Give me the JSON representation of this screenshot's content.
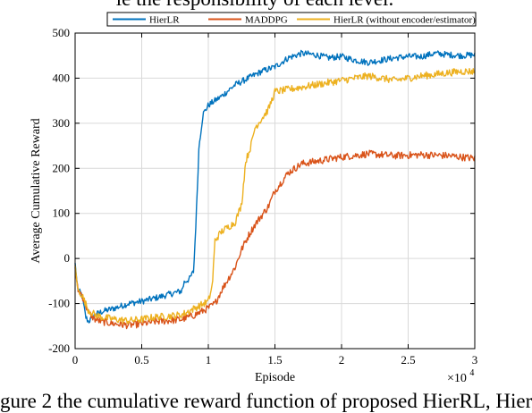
{
  "page": {
    "top_caption": "le the responsibility of each level.",
    "bottom_caption": "gure 2 the cumulative reward function of proposed HierRL, Hier"
  },
  "chart_data": {
    "type": "line",
    "title": "",
    "xlabel": "Episode",
    "ylabel": "Average Cumulative Reward",
    "x_multiplier_label": "×10",
    "x_multiplier_exponent": "4",
    "xlim": [
      0,
      3
    ],
    "ylim": [
      -200,
      500
    ],
    "x_ticks": [
      0,
      0.5,
      1,
      1.5,
      2,
      2.5,
      3
    ],
    "x_tick_labels": [
      "0",
      "0.5",
      "1",
      "1.5",
      "2",
      "2.5",
      "3"
    ],
    "y_ticks": [
      -200,
      -100,
      0,
      100,
      200,
      300,
      400,
      500
    ],
    "y_tick_labels": [
      "-200",
      "-100",
      "0",
      "100",
      "200",
      "300",
      "400",
      "500"
    ],
    "grid": true,
    "legend_position": "top",
    "series": [
      {
        "name": "HierLR",
        "color": "#0072bd",
        "noise": 7,
        "points": [
          [
            0,
            -10
          ],
          [
            0.02,
            -70
          ],
          [
            0.05,
            -80
          ],
          [
            0.08,
            -130
          ],
          [
            0.1,
            -140
          ],
          [
            0.15,
            -125
          ],
          [
            0.2,
            -118
          ],
          [
            0.3,
            -110
          ],
          [
            0.4,
            -100
          ],
          [
            0.5,
            -95
          ],
          [
            0.6,
            -88
          ],
          [
            0.7,
            -80
          ],
          [
            0.8,
            -72
          ],
          [
            0.82,
            -52
          ],
          [
            0.86,
            -45
          ],
          [
            0.89,
            -28
          ],
          [
            0.91,
            100
          ],
          [
            0.93,
            250
          ],
          [
            0.96,
            320
          ],
          [
            1.0,
            340
          ],
          [
            1.1,
            360
          ],
          [
            1.2,
            385
          ],
          [
            1.3,
            400
          ],
          [
            1.4,
            415
          ],
          [
            1.5,
            425
          ],
          [
            1.6,
            445
          ],
          [
            1.7,
            455
          ],
          [
            1.8,
            452
          ],
          [
            1.9,
            445
          ],
          [
            2.0,
            448
          ],
          [
            2.1,
            440
          ],
          [
            2.2,
            435
          ],
          [
            2.3,
            440
          ],
          [
            2.4,
            445
          ],
          [
            2.5,
            448
          ],
          [
            2.6,
            448
          ],
          [
            2.7,
            455
          ],
          [
            2.8,
            452
          ],
          [
            2.9,
            450
          ],
          [
            3.0,
            452
          ]
        ]
      },
      {
        "name": "MADDPG",
        "color": "#d95319",
        "noise": 8,
        "points": [
          [
            0,
            -20
          ],
          [
            0.02,
            -70
          ],
          [
            0.05,
            -80
          ],
          [
            0.1,
            -120
          ],
          [
            0.15,
            -135
          ],
          [
            0.2,
            -140
          ],
          [
            0.3,
            -145
          ],
          [
            0.4,
            -148
          ],
          [
            0.5,
            -145
          ],
          [
            0.6,
            -140
          ],
          [
            0.7,
            -138
          ],
          [
            0.8,
            -135
          ],
          [
            0.9,
            -125
          ],
          [
            1.0,
            -110
          ],
          [
            1.05,
            -100
          ],
          [
            1.1,
            -70
          ],
          [
            1.15,
            -45
          ],
          [
            1.2,
            -20
          ],
          [
            1.25,
            20
          ],
          [
            1.3,
            50
          ],
          [
            1.35,
            75
          ],
          [
            1.4,
            95
          ],
          [
            1.45,
            115
          ],
          [
            1.5,
            150
          ],
          [
            1.6,
            190
          ],
          [
            1.7,
            210
          ],
          [
            1.8,
            215
          ],
          [
            1.9,
            220
          ],
          [
            2.0,
            225
          ],
          [
            2.2,
            232
          ],
          [
            2.4,
            228
          ],
          [
            2.6,
            230
          ],
          [
            2.8,
            228
          ],
          [
            3.0,
            222
          ]
        ]
      },
      {
        "name": "HierLR (without encoder/estimator)",
        "color": "#edb120",
        "noise": 8,
        "points": [
          [
            0,
            -15
          ],
          [
            0.02,
            -70
          ],
          [
            0.05,
            -80
          ],
          [
            0.1,
            -115
          ],
          [
            0.15,
            -125
          ],
          [
            0.2,
            -130
          ],
          [
            0.3,
            -135
          ],
          [
            0.4,
            -138
          ],
          [
            0.5,
            -135
          ],
          [
            0.6,
            -130
          ],
          [
            0.7,
            -128
          ],
          [
            0.8,
            -125
          ],
          [
            0.9,
            -110
          ],
          [
            1.0,
            -95
          ],
          [
            1.03,
            -60
          ],
          [
            1.05,
            40
          ],
          [
            1.1,
            60
          ],
          [
            1.2,
            80
          ],
          [
            1.25,
            120
          ],
          [
            1.28,
            215
          ],
          [
            1.32,
            250
          ],
          [
            1.35,
            290
          ],
          [
            1.4,
            310
          ],
          [
            1.45,
            330
          ],
          [
            1.5,
            370
          ],
          [
            1.6,
            375
          ],
          [
            1.7,
            380
          ],
          [
            1.8,
            385
          ],
          [
            1.9,
            390
          ],
          [
            2.0,
            395
          ],
          [
            2.1,
            400
          ],
          [
            2.2,
            405
          ],
          [
            2.3,
            400
          ],
          [
            2.4,
            395
          ],
          [
            2.5,
            400
          ],
          [
            2.6,
            405
          ],
          [
            2.7,
            408
          ],
          [
            2.8,
            412
          ],
          [
            2.9,
            415
          ],
          [
            3.0,
            415
          ]
        ]
      }
    ]
  }
}
